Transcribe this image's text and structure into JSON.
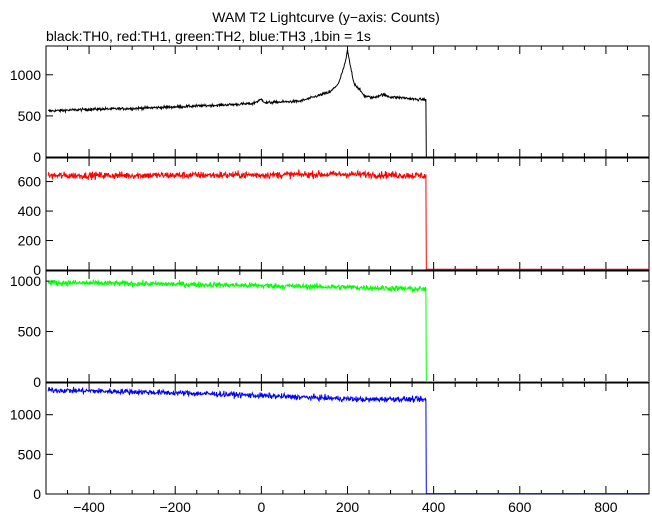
{
  "title": "WAM T2 Lightcurve (y−axis: Counts)",
  "subtitle": "black:TH0, red:TH1, green:TH2, blue:TH3 ,1bin = 1s",
  "chart_data": [
    {
      "type": "line",
      "series": [
        {
          "name": "TH0",
          "color": "#000000"
        }
      ],
      "ylim": [
        0,
        1350
      ],
      "yticks": [
        0,
        500,
        1000
      ],
      "xlim": [
        -500,
        900
      ],
      "profile": [
        [
          -495,
          560
        ],
        [
          -400,
          580
        ],
        [
          -300,
          590
        ],
        [
          -200,
          610
        ],
        [
          -100,
          630
        ],
        [
          -20,
          650
        ],
        [
          0,
          700
        ],
        [
          10,
          660
        ],
        [
          50,
          670
        ],
        [
          90,
          680
        ],
        [
          110,
          710
        ],
        [
          140,
          760
        ],
        [
          160,
          790
        ],
        [
          180,
          900
        ],
        [
          195,
          1150
        ],
        [
          200,
          1300
        ],
        [
          205,
          1150
        ],
        [
          215,
          900
        ],
        [
          240,
          740
        ],
        [
          260,
          720
        ],
        [
          280,
          760
        ],
        [
          300,
          730
        ],
        [
          330,
          720
        ],
        [
          360,
          700
        ],
        [
          382,
          700
        ],
        [
          382,
          0
        ],
        [
          900,
          0
        ]
      ],
      "noise": 16
    },
    {
      "type": "line",
      "series": [
        {
          "name": "TH1",
          "color": "#ff0000"
        }
      ],
      "ylim": [
        0,
        760
      ],
      "yticks": [
        0,
        200,
        400,
        600
      ],
      "xlim": [
        -500,
        900
      ],
      "profile": [
        [
          -495,
          640
        ],
        [
          0,
          645
        ],
        [
          200,
          650
        ],
        [
          382,
          640
        ],
        [
          382,
          5
        ],
        [
          900,
          5
        ]
      ],
      "noise": 24
    },
    {
      "type": "line",
      "series": [
        {
          "name": "TH2",
          "color": "#00ff00"
        }
      ],
      "ylim": [
        0,
        1100
      ],
      "yticks": [
        0,
        500,
        1000
      ],
      "xlim": [
        -500,
        900
      ],
      "profile": [
        [
          -495,
          985
        ],
        [
          -200,
          970
        ],
        [
          0,
          955
        ],
        [
          200,
          940
        ],
        [
          382,
          920
        ],
        [
          382,
          5
        ],
        [
          900,
          5
        ]
      ],
      "noise": 28
    },
    {
      "type": "line",
      "series": [
        {
          "name": "TH3",
          "color": "#0000ff"
        }
      ],
      "ylim": [
        0,
        1400
      ],
      "yticks": [
        0,
        500,
        1000
      ],
      "xlim": [
        -500,
        900
      ],
      "profile": [
        [
          -495,
          1310
        ],
        [
          -300,
          1290
        ],
        [
          -100,
          1260
        ],
        [
          100,
          1220
        ],
        [
          250,
          1190
        ],
        [
          300,
          1200
        ],
        [
          382,
          1190
        ],
        [
          382,
          5
        ],
        [
          900,
          5
        ]
      ],
      "noise": 35
    }
  ],
  "xaxis": {
    "ticks": [
      -400,
      -200,
      0,
      200,
      400,
      600,
      800
    ],
    "tick_labels": [
      "−400",
      "−200",
      "0",
      "200",
      "400",
      "600",
      "800"
    ]
  }
}
